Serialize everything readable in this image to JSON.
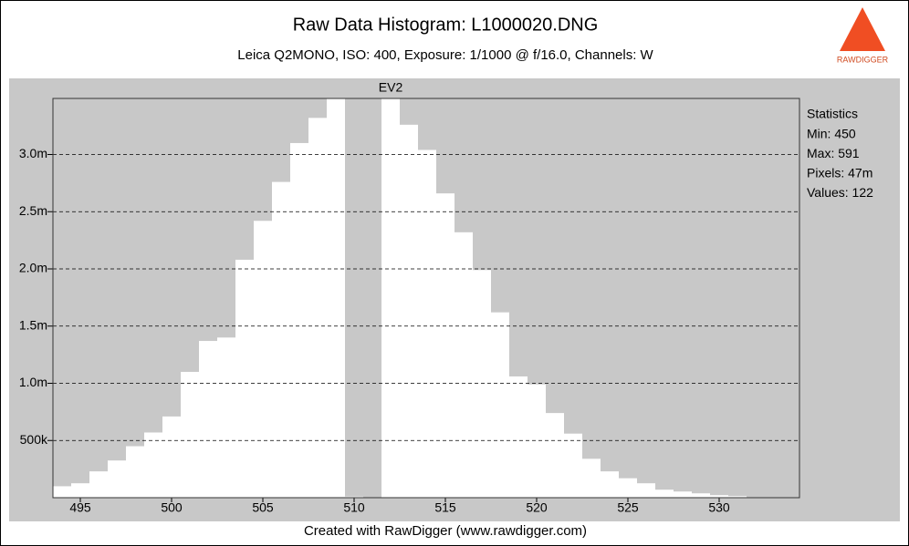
{
  "chart_data": {
    "type": "histogram",
    "title": "Raw Data Histogram: L1000020.DNG",
    "subtitle": "Leica Q2MONO, ISO: 400, Exposure: 1/1000 @ f/16.0, Channels: W",
    "annotation": "EV2",
    "footer": "Created with RawDigger (www.rawdigger.com)",
    "logo_text": "RAWDIGGER",
    "statistics": {
      "title": "Statistics",
      "lines": [
        "Min: 450",
        "Max: 591",
        "Pixels: 47m",
        "Values: 122"
      ]
    },
    "bins": [
      493.5,
      494.5,
      495.5,
      496.5,
      497.5,
      498.5,
      499.5,
      500.5,
      501.5,
      502.5,
      503.5,
      504.5,
      505.5,
      506.5,
      507.5,
      508.5,
      509.5,
      510.5,
      511.5,
      512.5,
      513.5,
      514.5,
      515.5,
      516.5,
      517.5,
      518.5,
      519.5,
      520.5,
      521.5,
      522.5,
      523.5,
      524.5,
      525.5,
      526.5,
      527.5,
      528.5,
      529.5,
      530.5,
      531.5
    ],
    "values": [
      100000,
      126000,
      230000,
      325000,
      450000,
      570000,
      710000,
      1100000,
      1370000,
      1400000,
      2080000,
      2420000,
      2760000,
      3100000,
      3320000,
      3600000,
      10000,
      0,
      3600000,
      3260000,
      3040000,
      2660000,
      2320000,
      1990000,
      1620000,
      1060000,
      990000,
      740000,
      560000,
      340000,
      230000,
      170000,
      126000,
      70000,
      54000,
      38000,
      22000,
      14000
    ],
    "color": "#ffffff",
    "xlim": [
      493.5,
      534.4
    ],
    "ylim": [
      0,
      3490000
    ],
    "xticks": [
      495,
      500,
      505,
      510,
      515,
      520,
      525,
      530
    ],
    "yticks": [
      {
        "value": 500000,
        "label": "500k"
      },
      {
        "value": 1000000,
        "label": "1.0m"
      },
      {
        "value": 1500000,
        "label": "1.5m"
      },
      {
        "value": 2000000,
        "label": "2.0m"
      },
      {
        "value": 2500000,
        "label": "2.5m"
      },
      {
        "value": 3000000,
        "label": "3.0m"
      }
    ],
    "grid": true
  }
}
